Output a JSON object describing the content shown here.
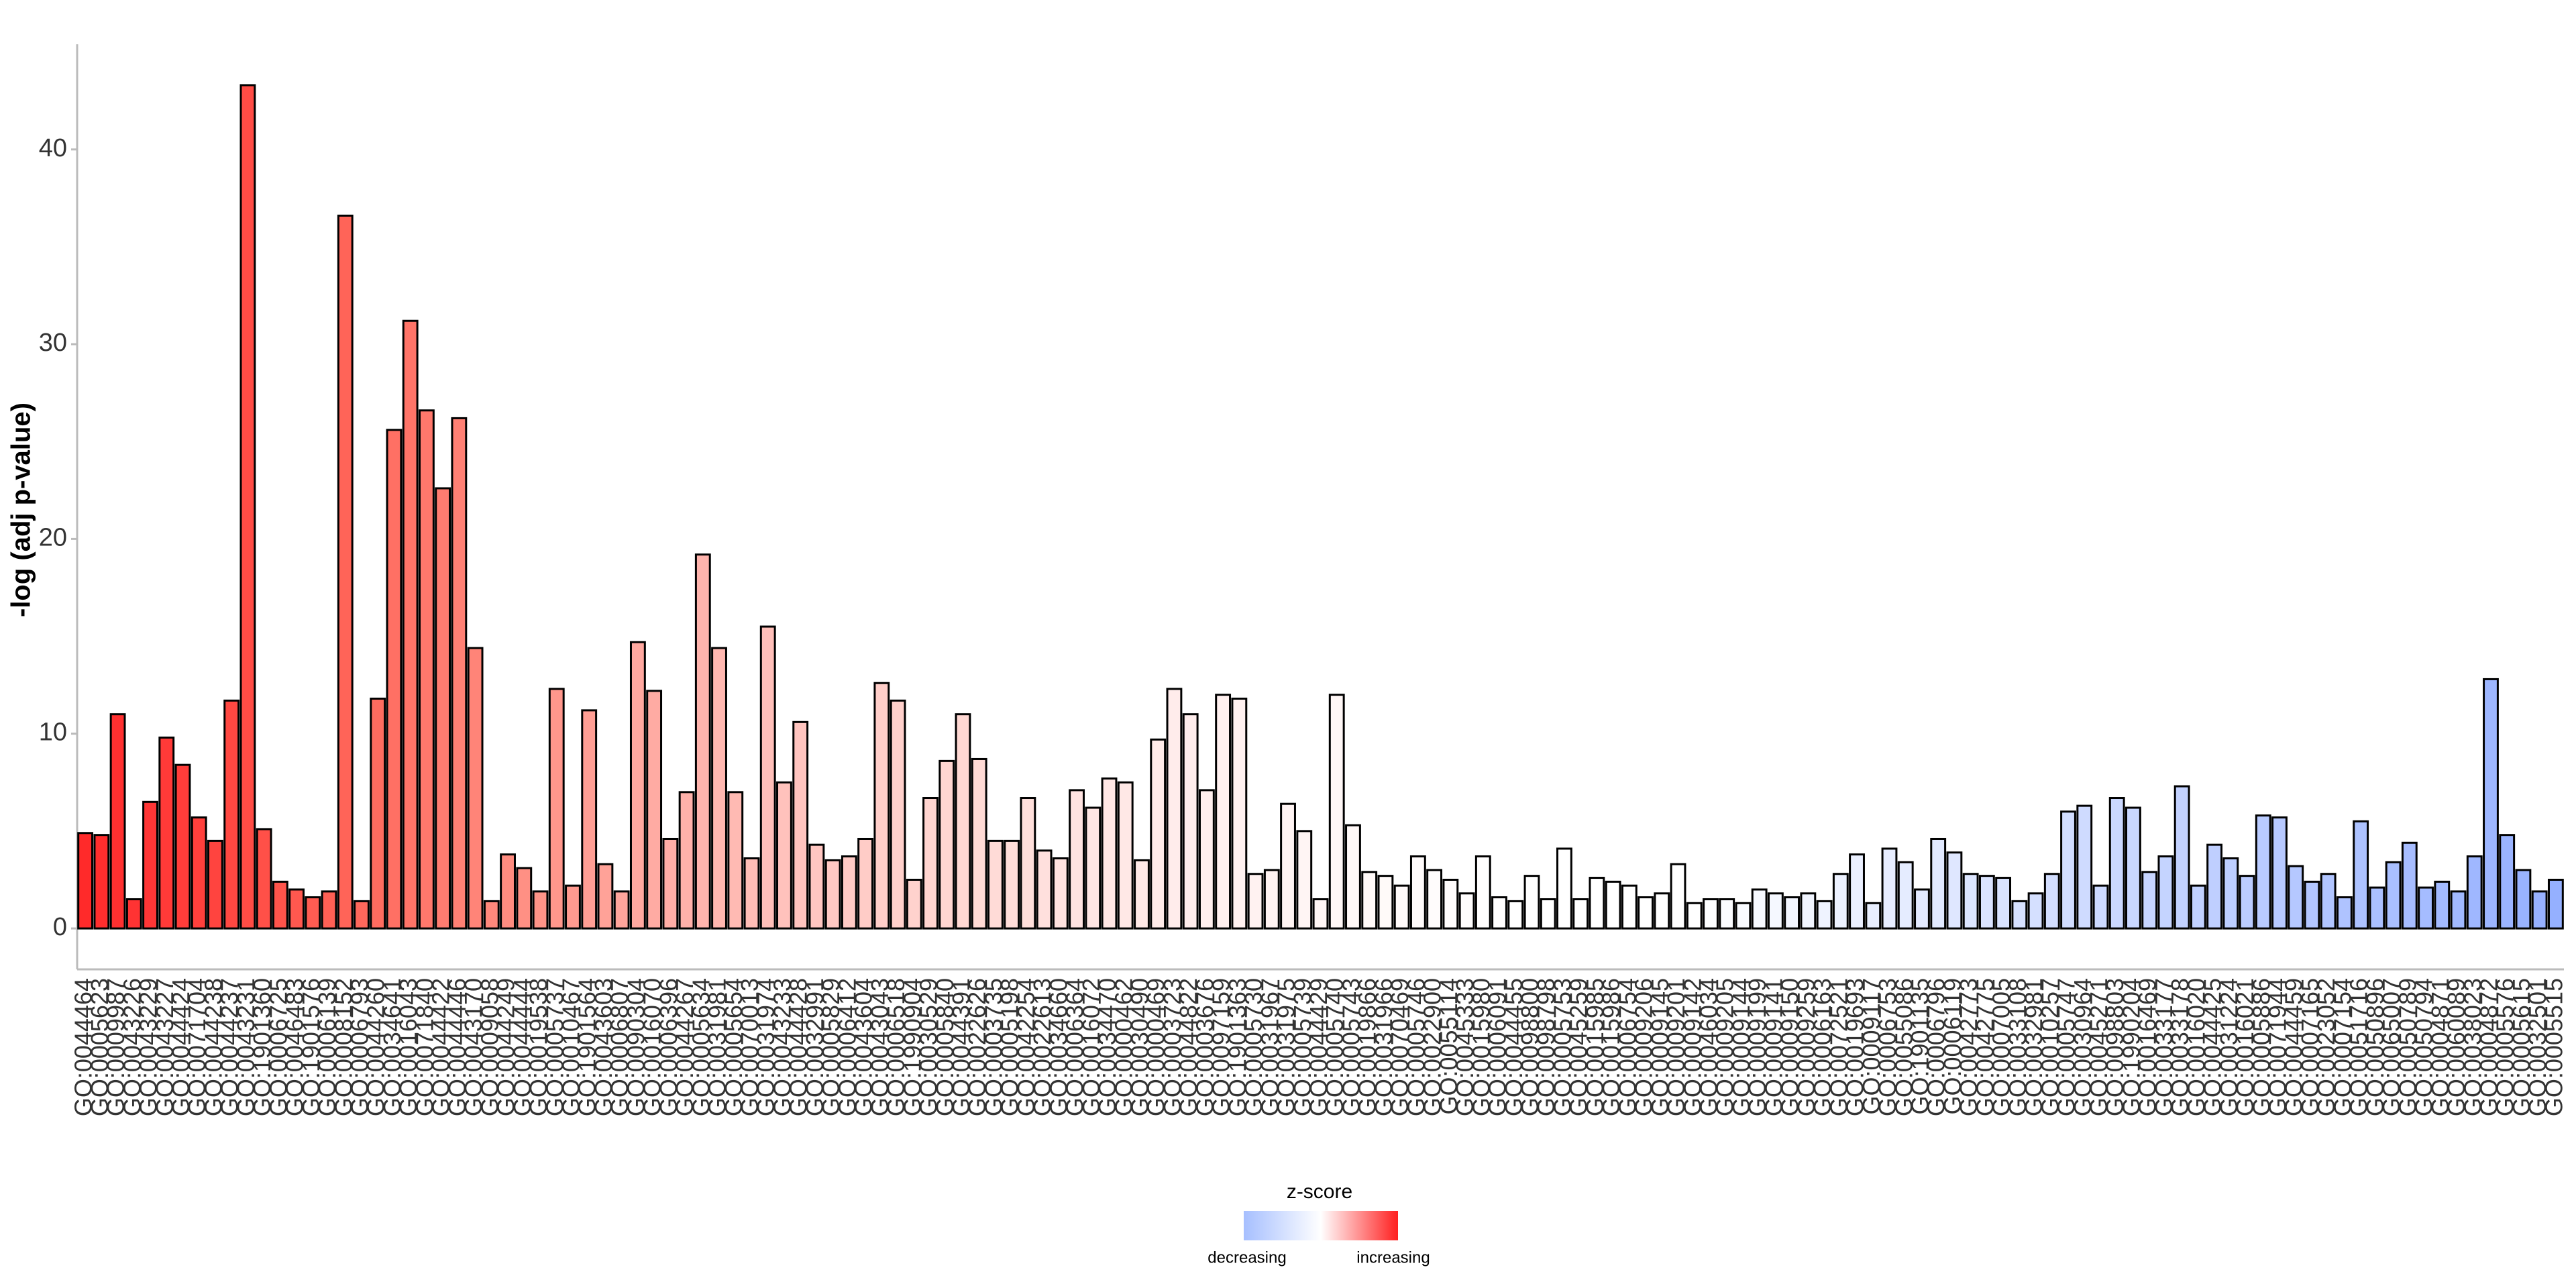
{
  "chart_data": {
    "type": "bar",
    "y_label": "-log (adj p-value)",
    "categories": [
      "GO:0044464",
      "GO:0005623",
      "GO:0009987",
      "GO:0043226",
      "GO:0043229",
      "GO:0043227",
      "GO:0044424",
      "GO:0071704",
      "GO:0044238",
      "GO:0044237",
      "GO:0043231",
      "GO:1901360",
      "GO:0006725",
      "GO:0046483",
      "GO:1901576",
      "GO:0006139",
      "GO:0008152",
      "GO:0006793",
      "GO:0044260",
      "GO:0034641",
      "GO:0016043",
      "GO:0071840",
      "GO:0044422",
      "GO:0044446",
      "GO:0043170",
      "GO:0009058",
      "GO:0044249",
      "GO:0044444",
      "GO:0019538",
      "GO:0005737",
      "GO:0010467",
      "GO:1901564",
      "GO:0043603",
      "GO:0006807",
      "GO:0090304",
      "GO:0016070",
      "GO:0006396",
      "GO:0044267",
      "GO:0005634",
      "GO:0031981",
      "GO:0005654",
      "GO:0070013",
      "GO:0031974",
      "GO:0043233",
      "GO:0044428",
      "GO:0032991",
      "GO:0005829",
      "GO:0006412",
      "GO:0043604",
      "GO:0043043",
      "GO:0006518",
      "GO:1990904",
      "GO:0030529",
      "GO:0005840",
      "GO:0044391",
      "GO:0022626",
      "GO:0003735",
      "GO:0005198",
      "GO:0042254",
      "GO:0022613",
      "GO:0034660",
      "GO:0006364",
      "GO:0016072",
      "GO:0034470",
      "GO:0000462",
      "GO:0030490",
      "GO:0000469",
      "GO:0003723",
      "GO:0044822",
      "GO:0003676",
      "GO:0097159",
      "GO:1901363",
      "GO:0005730",
      "GO:0031967",
      "GO:0031975",
      "GO:0005739",
      "GO:0044429",
      "GO:0005740",
      "GO:0005743",
      "GO:0019866",
      "GO:0031966",
      "GO:0070469",
      "GO:0005746",
      "GO:0022900",
      "GO:0055114",
      "GO:0045333",
      "GO:0015980",
      "GO:0006091",
      "GO:0044455",
      "GO:0098800",
      "GO:0098798",
      "GO:0005753",
      "GO:0045259",
      "GO:0015985",
      "GO:0015986",
      "GO:0006754",
      "GO:0009206",
      "GO:0009145",
      "GO:0009201",
      "GO:0009142",
      "GO:0046034",
      "GO:0009205",
      "GO:0009144",
      "GO:0009199",
      "GO:0009141",
      "GO:0009150",
      "GO:0009259",
      "GO:0006163",
      "GO:0072521",
      "GO:0019693",
      "GO:0009117",
      "GO:0006753",
      "GO:0055086",
      "GO:1901135",
      "GO:0006796",
      "GO:0006119",
      "GO:0042773",
      "GO:0042775",
      "GO:0007005",
      "GO:0033108",
      "GO:0032981",
      "GO:0010257",
      "GO:0005747",
      "GO:0030964",
      "GO:0045271",
      "GO:0098803",
      "GO:1990204",
      "GO:0016469",
      "GO:0033177",
      "GO:0033178",
      "GO:0016020",
      "GO:0044425",
      "GO:0031224",
      "GO:0016021",
      "GO:0005886",
      "GO:0071944",
      "GO:0044459",
      "GO:0007165",
      "GO:0023052",
      "GO:0007154",
      "GO:0051716",
      "GO:0050896",
      "GO:0065007",
      "GO:0050789",
      "GO:0050794",
      "GO:0004871",
      "GO:0060089",
      "GO:0038023",
      "GO:0004872",
      "GO:0005576",
      "GO:0005615",
      "GO:0032501",
      "GO:0005515"
    ],
    "values": [
      4.9,
      4.8,
      11.0,
      1.5,
      6.5,
      9.8,
      8.4,
      5.7,
      4.5,
      11.7,
      43.3,
      5.1,
      2.4,
      2.0,
      1.6,
      1.9,
      36.6,
      1.4,
      11.8,
      25.6,
      31.2,
      26.6,
      22.6,
      26.2,
      14.4,
      1.4,
      3.8,
      3.1,
      1.9,
      12.3,
      2.2,
      11.2,
      3.3,
      1.9,
      14.7,
      12.2,
      4.6,
      7.0,
      19.2,
      14.4,
      7.0,
      3.6,
      15.5,
      7.5,
      10.6,
      4.3,
      3.5,
      3.7,
      4.6,
      12.6,
      11.7,
      2.5,
      6.7,
      8.6,
      11.0,
      8.7,
      4.5,
      4.5,
      6.7,
      4.0,
      3.6,
      7.1,
      6.2,
      7.7,
      7.5,
      3.5,
      9.7,
      12.3,
      11.0,
      7.1,
      12.0,
      11.8,
      2.8,
      3.0,
      6.4,
      5.0,
      1.5,
      12.0,
      5.3,
      2.9,
      2.7,
      2.2,
      3.7,
      3.0,
      2.5,
      1.8,
      3.7,
      1.6,
      1.4,
      2.7,
      1.5,
      4.1,
      1.5,
      2.6,
      2.4,
      2.2,
      1.6,
      1.8,
      3.3,
      1.3,
      1.5,
      1.5,
      1.3,
      2.0,
      1.8,
      1.6,
      1.8,
      1.4,
      2.8,
      3.8,
      1.3,
      4.1,
      3.4,
      2.0,
      4.6,
      3.9,
      2.8,
      2.7,
      2.6,
      1.4,
      1.8,
      2.8,
      6.0,
      6.3,
      2.2,
      6.7,
      6.2,
      2.9,
      3.7,
      7.3,
      2.2,
      4.3,
      3.6,
      2.7,
      5.8,
      5.7,
      3.2,
      2.4,
      2.8,
      1.6,
      5.5,
      2.1,
      3.4,
      4.4,
      2.1,
      2.4,
      1.9,
      3.7,
      12.8,
      4.8,
      3.0,
      1.9,
      2.5
    ],
    "colors": [
      "#ff2a2a",
      "#ff2e2e",
      "#ff3030",
      "#ff3333",
      "#ff3636",
      "#ff3a38",
      "#ff3d3a",
      "#ff403c",
      "#ff443f",
      "#ff4842",
      "#ff4c45",
      "#ff5048",
      "#ff544b",
      "#ff584f",
      "#ff5c52",
      "#ff6055",
      "#ff6458",
      "#ff685c",
      "#ff6c60",
      "#ff7064",
      "#ff7468",
      "#ff786c",
      "#ff7c70",
      "#ff8074",
      "#ff8478",
      "#ff887c",
      "#ff8c80",
      "#ff9084",
      "#ff9488",
      "#ff978c",
      "#ff9a90",
      "#ff9e94",
      "#ffa298",
      "#ffa59c",
      "#ffa8a0",
      "#ffaba3",
      "#ffaea6",
      "#ffb1aa",
      "#ffb4ad",
      "#ffb7b0",
      "#ffbab3",
      "#ffbdb6",
      "#ffbfb9",
      "#ffc2bc",
      "#ffc4bf",
      "#ffc6c1",
      "#ffc8c3",
      "#ffcac5",
      "#ffccc7",
      "#ffcec9",
      "#ffd0cb",
      "#ffd2cd",
      "#ffd4cf",
      "#ffd6d1",
      "#ffd8d3",
      "#ffdad5",
      "#ffdbd7",
      "#ffddd9",
      "#ffdfdb",
      "#ffe0dd",
      "#ffe2df",
      "#ffe3e1",
      "#ffe5e3",
      "#ffe6e4",
      "#ffe8e6",
      "#ffe9e7",
      "#ffebe9",
      "#ffeceb",
      "#ffedec",
      "#ffefee",
      "#fff0ef",
      "#fff1f0",
      "#fff2f1",
      "#fff3f2",
      "#fff4f3",
      "#fff5f4",
      "#fff6f5",
      "#fff7f6",
      "#fff8f7",
      "#fff9f8",
      "#fffaf9",
      "#fffafa",
      "#fffbfb",
      "#fffcfc",
      "#fffcfc",
      "#fffdfd",
      "#fffefe",
      "#fffefe",
      "#ffffff",
      "#ffffff",
      "#ffffff",
      "#ffffff",
      "#ffffff",
      "#ffffff",
      "#ffffff",
      "#ffffff",
      "#ffffff",
      "#ffffff",
      "#ffffff",
      "#ffffff",
      "#fdfeff",
      "#fbfcff",
      "#f9fbff",
      "#f7f9ff",
      "#f5f8ff",
      "#f3f6ff",
      "#f1f5ff",
      "#eff3ff",
      "#edf2ff",
      "#ebf0ff",
      "#e9efff",
      "#e7edff",
      "#e5ecff",
      "#e3eaff",
      "#e1e9ff",
      "#dfe7ff",
      "#dde6ff",
      "#dbe4ff",
      "#d9e3ff",
      "#d7e1ff",
      "#d5e0ff",
      "#d3deff",
      "#d1ddff",
      "#cfdbff",
      "#cddaff",
      "#cbd8ff",
      "#c9d7ff",
      "#c7d5ff",
      "#c5d4ff",
      "#c3d2ff",
      "#c1d1ff",
      "#bfcfff",
      "#bdceff",
      "#bbccff",
      "#b9cbff",
      "#b7c9ff",
      "#b5c8ff",
      "#b3c6ff",
      "#b1c5ff",
      "#afc3ff",
      "#adc2ff",
      "#abc0ff",
      "#a9bfff",
      "#a7bdff",
      "#a5bcff",
      "#a3baff",
      "#a1b9ff",
      "#9fb7ff",
      "#9db6ff",
      "#9bb4ff",
      "#99b3ff",
      "#97b1ff",
      "#95b0ff"
    ],
    "ylim": [
      -2.1,
      45.4
    ],
    "yticks": [
      0,
      10,
      20,
      30,
      40
    ],
    "grid": false,
    "legend": {
      "title": "z-score",
      "low_label": "decreasing",
      "high_label": "increasing",
      "colors": [
        "#a6bfff",
        "#ffffff",
        "#ff2020"
      ]
    }
  }
}
